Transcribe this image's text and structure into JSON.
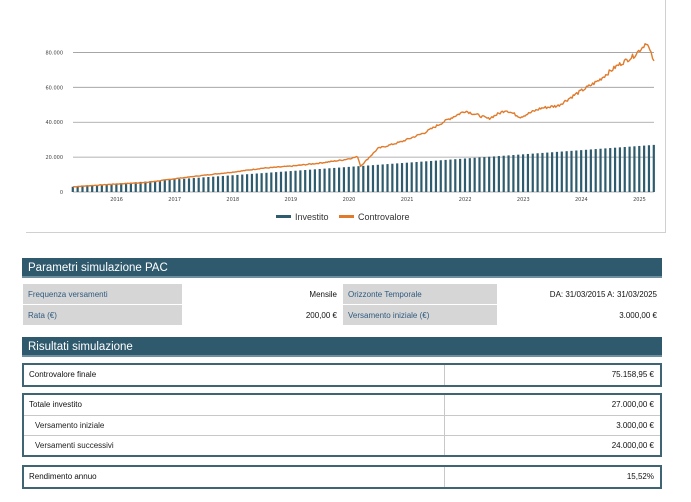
{
  "chart_data": {
    "type": "bar",
    "x_ticks": [
      "2016",
      "2017",
      "2018",
      "2019",
      "2020",
      "2021",
      "2022",
      "2023",
      "2024",
      "2025"
    ],
    "y_ticks": [
      "0",
      "20.000",
      "40.000",
      "60.000",
      "80.000"
    ],
    "ylim": [
      0,
      90000
    ],
    "x_range": [
      2015.25,
      2025.25
    ],
    "legend_position": "bottom",
    "grid": true,
    "series": [
      {
        "name": "Investito",
        "type": "bar",
        "color": "#2e5c6e",
        "values": [
          3000,
          27000
        ]
      },
      {
        "name": "Controvalore",
        "type": "line",
        "color": "#e07b2c",
        "points": [
          [
            2015.25,
            3000
          ],
          [
            2016.0,
            4600
          ],
          [
            2016.5,
            5400
          ],
          [
            2017.0,
            7600
          ],
          [
            2017.5,
            9600
          ],
          [
            2018.0,
            11400
          ],
          [
            2018.5,
            13600
          ],
          [
            2019.0,
            14800
          ],
          [
            2019.5,
            16600
          ],
          [
            2019.9,
            18400
          ],
          [
            2020.15,
            20200
          ],
          [
            2020.2,
            14800
          ],
          [
            2020.5,
            25000
          ],
          [
            2020.9,
            28800
          ],
          [
            2021.3,
            34000
          ],
          [
            2021.7,
            41500
          ],
          [
            2022.0,
            46500
          ],
          [
            2022.4,
            42000
          ],
          [
            2022.7,
            47000
          ],
          [
            2022.95,
            43000
          ],
          [
            2023.3,
            48000
          ],
          [
            2023.6,
            49500
          ],
          [
            2023.9,
            56000
          ],
          [
            2024.3,
            64000
          ],
          [
            2024.6,
            72000
          ],
          [
            2024.9,
            78000
          ],
          [
            2025.05,
            83000
          ],
          [
            2025.12,
            86000
          ],
          [
            2025.2,
            79000
          ],
          [
            2025.25,
            75159
          ]
        ]
      }
    ]
  },
  "legend": {
    "investito": "Investito",
    "controvalore": "Controvalore"
  },
  "params": {
    "title": "Parametri simulazione PAC",
    "rows": [
      [
        "Frequenza versamenti",
        "Mensile",
        "Orizzonte Temporale",
        "DA: 31/03/2015 A: 31/03/2025"
      ],
      [
        "Rata (€)",
        "200,00 €",
        "Versamento iniziale (€)",
        "3.000,00 €"
      ]
    ]
  },
  "results": {
    "title": "Risultati simulazione",
    "controvalore": {
      "label": "Controvalore finale",
      "value": "75.158,95 €"
    },
    "totale": {
      "label": "Totale investito",
      "value": "27.000,00 €"
    },
    "iniziale": {
      "label": "Versamento iniziale",
      "value": "3.000,00 €"
    },
    "successivi": {
      "label": "Versamenti successivi",
      "value": "24.000,00 €"
    },
    "rendimento": {
      "label": "Rendimento annuo",
      "value": "15,52%"
    }
  }
}
